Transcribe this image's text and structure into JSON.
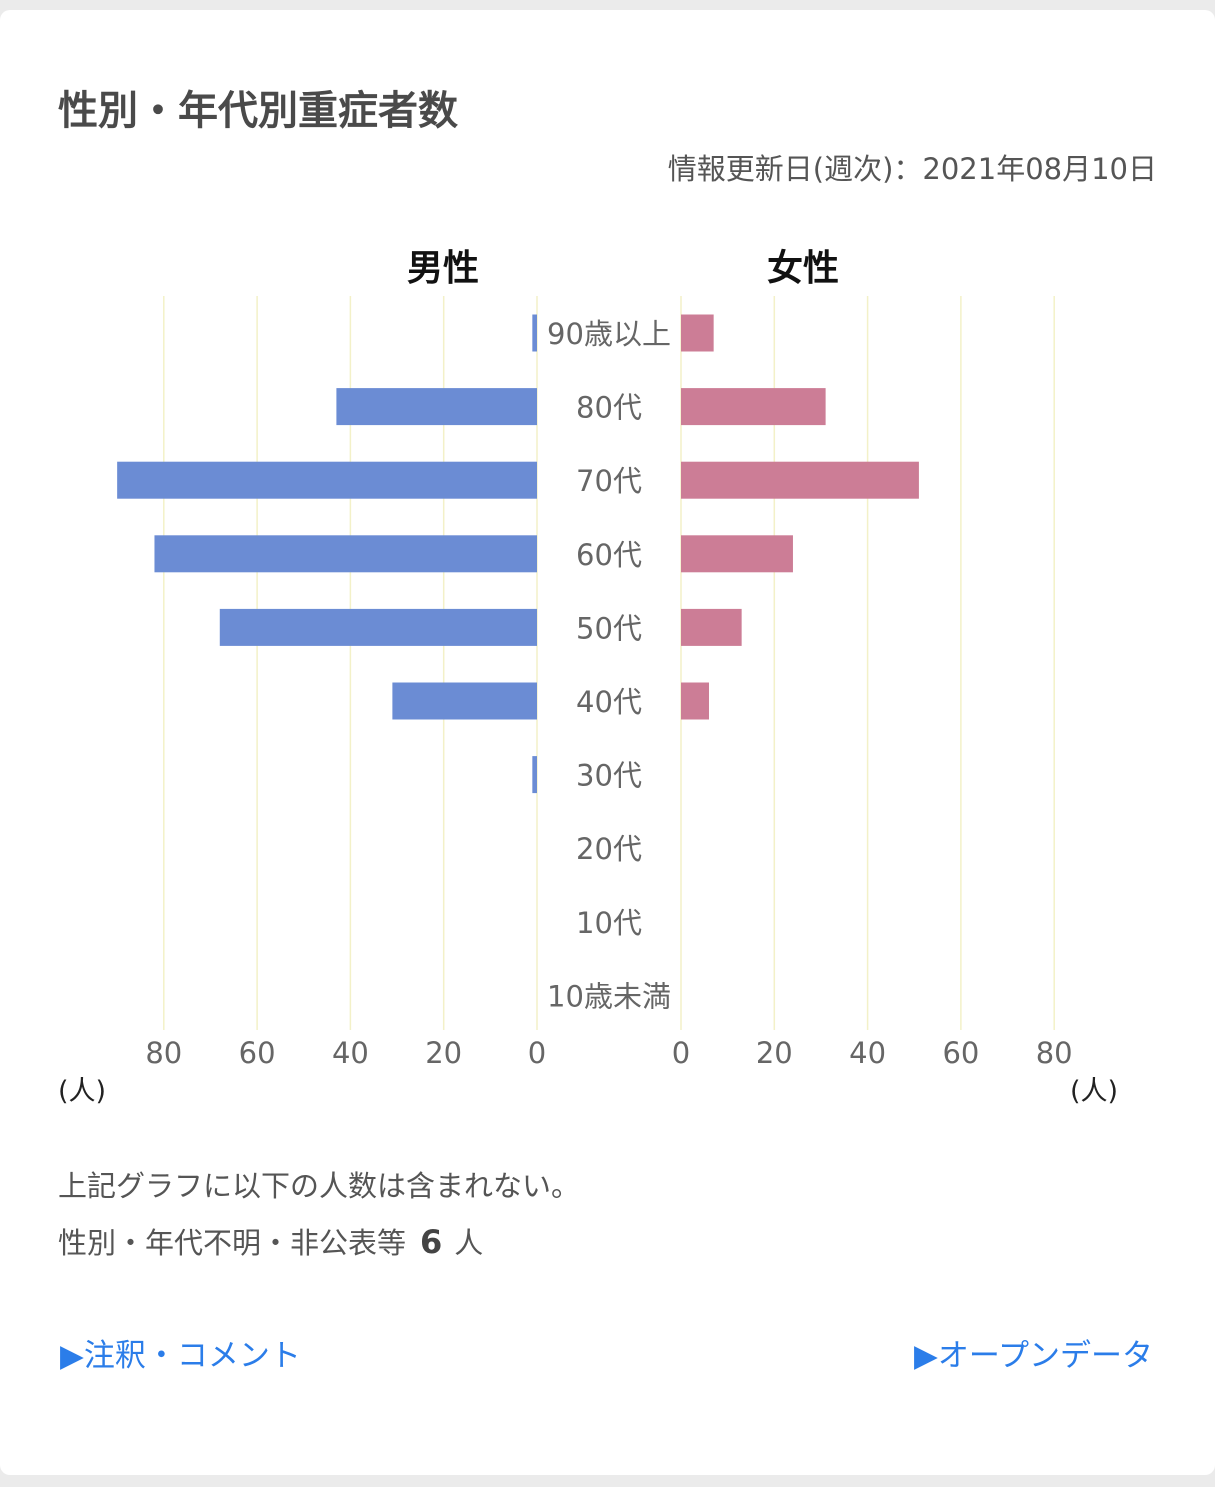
{
  "title": "性別・年代別重症者数",
  "updated_label": "情報更新日(週次)：2021年08月10日",
  "chart_data": {
    "type": "bar",
    "orientation": "horizontal-population-pyramid",
    "categories": [
      "90歳以上",
      "80代",
      "70代",
      "60代",
      "50代",
      "40代",
      "30代",
      "20代",
      "10代",
      "10歳未満"
    ],
    "series": [
      {
        "name": "男性",
        "color": "#6b8cd4",
        "values": [
          1,
          43,
          90,
          82,
          68,
          31,
          1,
          0,
          0,
          0
        ]
      },
      {
        "name": "女性",
        "color": "#cc7d96",
        "values": [
          7,
          31,
          51,
          24,
          13,
          6,
          0,
          0,
          0,
          0
        ]
      }
    ],
    "xticks": [
      "0",
      "20",
      "40",
      "60",
      "80"
    ],
    "xlim": [
      0,
      90
    ],
    "xlabel_left": "(人)",
    "xlabel_right": "(人)",
    "grid": true,
    "grid_color": "#f3f1c8"
  },
  "notes": {
    "line1": "上記グラフに以下の人数は含まれない。",
    "line2_label": "性別・年代不明・非公表等",
    "line2_value": "6",
    "line2_unit": "人"
  },
  "links": {
    "comments": "▶注釈・コメント",
    "open_data": "▶オープンデータ"
  }
}
